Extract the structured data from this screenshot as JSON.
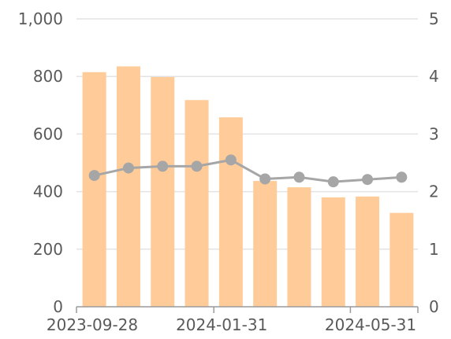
{
  "chart_data": {
    "type": "bar",
    "categories": [
      "2023-09-28",
      "",
      "",
      "",
      "2024-01-31",
      "",
      "",
      "",
      "2024-05-31",
      ""
    ],
    "x_tick_labels": [
      "2023-09-28",
      "2024-01-31",
      "2024-05-31"
    ],
    "series": [
      {
        "type": "bar",
        "axis": "left",
        "color": "#ffcc99",
        "values": [
          815,
          835,
          798,
          718,
          658,
          437,
          415,
          380,
          383,
          326
        ]
      },
      {
        "type": "line",
        "axis": "right",
        "color": "#a6a6a6",
        "values": [
          2.28,
          2.41,
          2.44,
          2.44,
          2.55,
          2.22,
          2.25,
          2.17,
          2.21,
          2.25
        ]
      }
    ],
    "y_left": {
      "ylim": [
        0,
        1000
      ],
      "ticks": [
        0,
        200,
        400,
        600,
        800,
        1000
      ],
      "tick_labels": [
        "0",
        "200",
        "400",
        "600",
        "800",
        "1,000"
      ]
    },
    "y_right": {
      "ylim": [
        0,
        5
      ],
      "ticks": [
        0,
        1,
        2,
        3,
        4,
        5
      ],
      "tick_labels": [
        "0",
        "1",
        "2",
        "3",
        "4",
        "5"
      ]
    },
    "grid": true,
    "legend": "none"
  }
}
